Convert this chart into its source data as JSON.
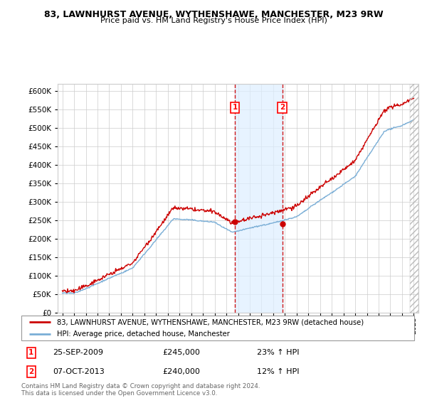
{
  "title": "83, LAWNHURST AVENUE, WYTHENSHAWE, MANCHESTER, M23 9RW",
  "subtitle": "Price paid vs. HM Land Registry's House Price Index (HPI)",
  "legend_line1": "83, LAWNHURST AVENUE, WYTHENSHAWE, MANCHESTER, M23 9RW (detached house)",
  "legend_line2": "HPI: Average price, detached house, Manchester",
  "annotation1_date": "25-SEP-2009",
  "annotation1_price": "£245,000",
  "annotation1_hpi": "23% ↑ HPI",
  "annotation2_date": "07-OCT-2013",
  "annotation2_price": "£240,000",
  "annotation2_hpi": "12% ↑ HPI",
  "footer": "Contains HM Land Registry data © Crown copyright and database right 2024.\nThis data is licensed under the Open Government Licence v3.0.",
  "ylim": [
    0,
    620000
  ],
  "yticks": [
    0,
    50000,
    100000,
    150000,
    200000,
    250000,
    300000,
    350000,
    400000,
    450000,
    500000,
    550000,
    600000
  ],
  "sale1_year": 2009.73,
  "sale1_price": 245000,
  "sale2_year": 2013.77,
  "sale2_price": 240000,
  "line_color_property": "#cc0000",
  "line_color_hpi": "#7aaed6",
  "background_color": "#ffffff",
  "grid_color": "#cccccc",
  "shade_color": "#ddeeff",
  "xlim_left": 1994.6,
  "xlim_right": 2025.4
}
